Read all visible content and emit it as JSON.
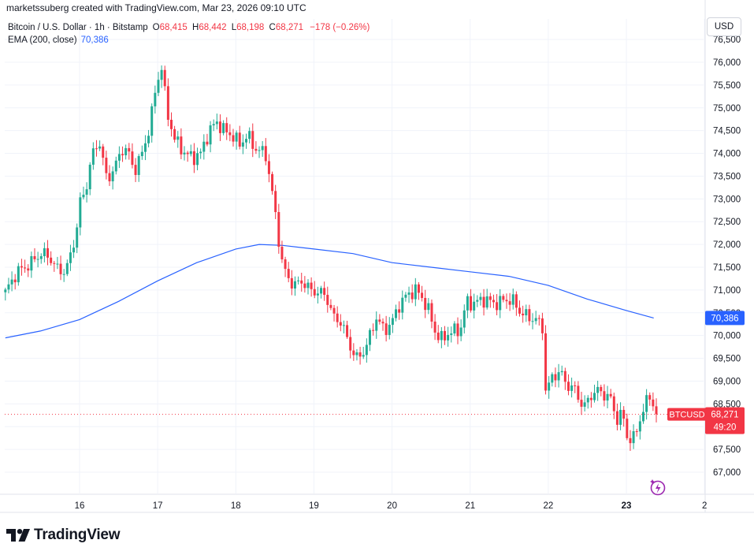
{
  "header": {
    "attribution": "marketssuberg created with TradingView.com, Mar 23, 2026 09:10 UTC"
  },
  "legend": {
    "symbol_line": "Bitcoin / U.S. Dollar · 1h · Bitstamp",
    "open_label": "O",
    "open_value": "68,415",
    "high_label": "H",
    "high_value": "68,442",
    "low_label": "L",
    "low_value": "68,198",
    "close_label": "C",
    "close_value": "68,271",
    "change": "−178 (−0.26%)",
    "ema_label": "EMA (200, close)",
    "ema_value": "70,386"
  },
  "price_scale": {
    "currency": "USD",
    "ticks": [
      "76,500",
      "76,000",
      "75,500",
      "75,000",
      "74,500",
      "74,000",
      "73,500",
      "73,000",
      "72,500",
      "72,000",
      "71,500",
      "71,000",
      "70,500",
      "70,000",
      "69,500",
      "69,000",
      "68,500",
      "68,000",
      "67,500",
      "67,000"
    ]
  },
  "time_scale": {
    "ticks": [
      "16",
      "17",
      "18",
      "19",
      "20",
      "21",
      "22",
      "23",
      "2"
    ]
  },
  "badges": {
    "ema_value": "70,386",
    "symbol": "BTCUSD",
    "last_price": "68,271",
    "countdown": "49:20"
  },
  "brand": {
    "name": "TradingView"
  },
  "colors": {
    "up": "#22ab94",
    "down": "#f23645",
    "ema": "#2962ff",
    "grid": "#f0f3fa",
    "last_line": "#f23645",
    "text": "#131722"
  },
  "chart_data": {
    "type": "candlestick",
    "symbol": "BTCUSD",
    "interval": "1h",
    "exchange": "Bitstamp",
    "ylim": [
      66600,
      76700
    ],
    "x_range": [
      15.05,
      23.95
    ],
    "x_ticks": [
      16,
      17,
      18,
      19,
      20,
      21,
      22,
      23
    ],
    "y_ticks": [
      67000,
      67500,
      68000,
      68500,
      69000,
      69500,
      70000,
      70500,
      71000,
      71500,
      72000,
      72500,
      73000,
      73500,
      74000,
      74500,
      75000,
      75500,
      76000,
      76500
    ],
    "last_close": 68271,
    "grid": true,
    "price_path": [
      [
        15.05,
        70950
      ],
      [
        15.2,
        71400
      ],
      [
        15.35,
        71550
      ],
      [
        15.5,
        71800
      ],
      [
        15.6,
        71750
      ],
      [
        15.72,
        71450
      ],
      [
        15.82,
        71400
      ],
      [
        15.9,
        71850
      ],
      [
        15.96,
        72300
      ],
      [
        16.0,
        72900
      ],
      [
        16.08,
        73200
      ],
      [
        16.15,
        73900
      ],
      [
        16.25,
        74300
      ],
      [
        16.35,
        73400
      ],
      [
        16.45,
        73700
      ],
      [
        16.55,
        74100
      ],
      [
        16.62,
        74050
      ],
      [
        16.7,
        73600
      ],
      [
        16.8,
        74000
      ],
      [
        16.9,
        74600
      ],
      [
        16.98,
        75500
      ],
      [
        17.05,
        75900
      ],
      [
        17.12,
        74900
      ],
      [
        17.22,
        74300
      ],
      [
        17.35,
        74000
      ],
      [
        17.45,
        73900
      ],
      [
        17.55,
        74000
      ],
      [
        17.65,
        74450
      ],
      [
        17.75,
        74700
      ],
      [
        17.85,
        74500
      ],
      [
        17.95,
        74400
      ],
      [
        18.05,
        74200
      ],
      [
        18.15,
        74400
      ],
      [
        18.25,
        74100
      ],
      [
        18.38,
        74000
      ],
      [
        18.46,
        73200
      ],
      [
        18.52,
        72500
      ],
      [
        18.58,
        71700
      ],
      [
        18.65,
        71300
      ],
      [
        18.75,
        71100
      ],
      [
        18.85,
        71200
      ],
      [
        18.95,
        71000
      ],
      [
        19.05,
        70950
      ],
      [
        19.15,
        70900
      ],
      [
        19.25,
        70400
      ],
      [
        19.35,
        70300
      ],
      [
        19.45,
        69800
      ],
      [
        19.55,
        69500
      ],
      [
        19.62,
        69600
      ],
      [
        19.7,
        69900
      ],
      [
        19.8,
        70400
      ],
      [
        19.9,
        70100
      ],
      [
        20.0,
        70300
      ],
      [
        20.1,
        70700
      ],
      [
        20.2,
        70900
      ],
      [
        20.3,
        71000
      ],
      [
        20.38,
        70850
      ],
      [
        20.48,
        70500
      ],
      [
        20.55,
        70100
      ],
      [
        20.62,
        69900
      ],
      [
        20.72,
        70050
      ],
      [
        20.8,
        70100
      ],
      [
        20.88,
        70150
      ],
      [
        20.95,
        70750
      ],
      [
        21.05,
        70700
      ],
      [
        21.15,
        70800
      ],
      [
        21.25,
        70750
      ],
      [
        21.35,
        70700
      ],
      [
        21.45,
        70800
      ],
      [
        21.55,
        70750
      ],
      [
        21.65,
        70500
      ],
      [
        21.75,
        70400
      ],
      [
        21.85,
        70350
      ],
      [
        21.93,
        70150
      ],
      [
        21.97,
        68700
      ],
      [
        22.05,
        69100
      ],
      [
        22.15,
        69200
      ],
      [
        22.25,
        68900
      ],
      [
        22.35,
        68800
      ],
      [
        22.45,
        68400
      ],
      [
        22.55,
        68700
      ],
      [
        22.65,
        68800
      ],
      [
        22.72,
        68700
      ],
      [
        22.8,
        68600
      ],
      [
        22.88,
        68150
      ],
      [
        22.95,
        68300
      ],
      [
        23.02,
        67700
      ],
      [
        23.1,
        67750
      ],
      [
        23.18,
        68200
      ],
      [
        23.25,
        68500
      ],
      [
        23.3,
        68700
      ],
      [
        23.38,
        68271
      ]
    ],
    "ema_200": [
      [
        15.05,
        69950
      ],
      [
        15.5,
        70100
      ],
      [
        16.0,
        70350
      ],
      [
        16.5,
        70750
      ],
      [
        17.0,
        71200
      ],
      [
        17.5,
        71600
      ],
      [
        18.0,
        71900
      ],
      [
        18.3,
        72000
      ],
      [
        18.6,
        71980
      ],
      [
        19.0,
        71900
      ],
      [
        19.5,
        71800
      ],
      [
        20.0,
        71600
      ],
      [
        20.5,
        71500
      ],
      [
        21.0,
        71400
      ],
      [
        21.5,
        71300
      ],
      [
        22.0,
        71100
      ],
      [
        22.5,
        70800
      ],
      [
        23.0,
        70550
      ],
      [
        23.35,
        70386
      ]
    ]
  }
}
